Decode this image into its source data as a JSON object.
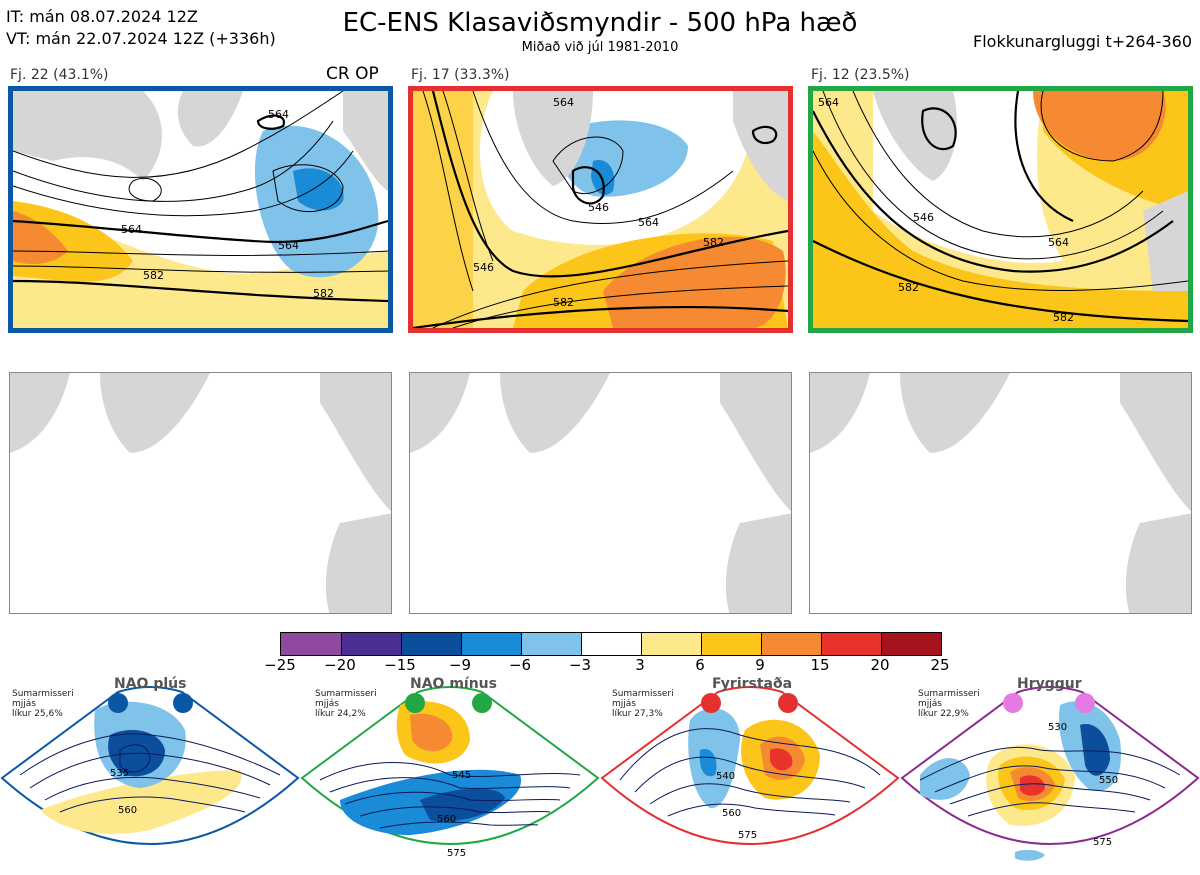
{
  "header": {
    "it_line": "IT: mán 08.07.2024 12Z",
    "vt_line": "VT: mán 22.07.2024 12Z  (+336h)",
    "title": "EC-ENS Klasaviðsmyndir - 500 hPa hæð",
    "subtitle": "Miðað við júl 1981-2010",
    "window": "Flokkunargluggi t+264-360"
  },
  "clusters": [
    {
      "label": "Fj. 22 (43.1%)",
      "tag": "CR OP",
      "border_color": "#0a57a4",
      "contour_labels": [
        "564",
        "564",
        "564",
        "582",
        "582"
      ]
    },
    {
      "label": "Fj. 17 (33.3%)",
      "tag": "",
      "border_color": "#e53030",
      "contour_labels": [
        "546",
        "546",
        "564",
        "564",
        "582",
        "582"
      ]
    },
    {
      "label": "Fj. 12 (23.5%)",
      "tag": "",
      "border_color": "#23a745",
      "contour_labels": [
        "546",
        "564",
        "564",
        "582",
        "582"
      ]
    }
  ],
  "colorbar": {
    "colors": [
      "#8d4a9e",
      "#4b2e91",
      "#0b4e9c",
      "#1a8bd6",
      "#7fc3ea",
      "#ffffff",
      "#fde98c",
      "#fbc51a",
      "#f58a32",
      "#e8332b",
      "#a5141c"
    ],
    "ticks": [
      "−25",
      "−20",
      "−15",
      "−9",
      "−6",
      "−3",
      "3",
      "6",
      "9",
      "15",
      "20",
      "25"
    ]
  },
  "regimes": [
    {
      "name": "NAO plús",
      "season": "Sumarmisseri",
      "fit": "mjjás",
      "prob": "líkur 25,6%",
      "color": "#0a57a4",
      "dot_color": "#0a57a4",
      "contour_labels": [
        "535",
        "560"
      ]
    },
    {
      "name": "NAO mínus",
      "season": "Sumarmisseri",
      "fit": "mjjás",
      "prob": "líkur 24,2%",
      "color": "#23a745",
      "dot_color": "#23a745",
      "contour_labels": [
        "545",
        "560",
        "575"
      ]
    },
    {
      "name": "Fyrirstaða",
      "season": "Sumarmisseri",
      "fit": "mjjás",
      "prob": "líkur 27,3%",
      "color": "#e53030",
      "dot_color": "#e53030",
      "contour_labels": [
        "540",
        "560",
        "575"
      ]
    },
    {
      "name": "Hryggur",
      "season": "Sumarmisseri",
      "fit": "mjjás",
      "prob": "líkur 22,9%",
      "color": "#8b2a8f",
      "dot_color": "#e57ae5",
      "contour_labels": [
        "530",
        "550",
        "575"
      ]
    }
  ]
}
